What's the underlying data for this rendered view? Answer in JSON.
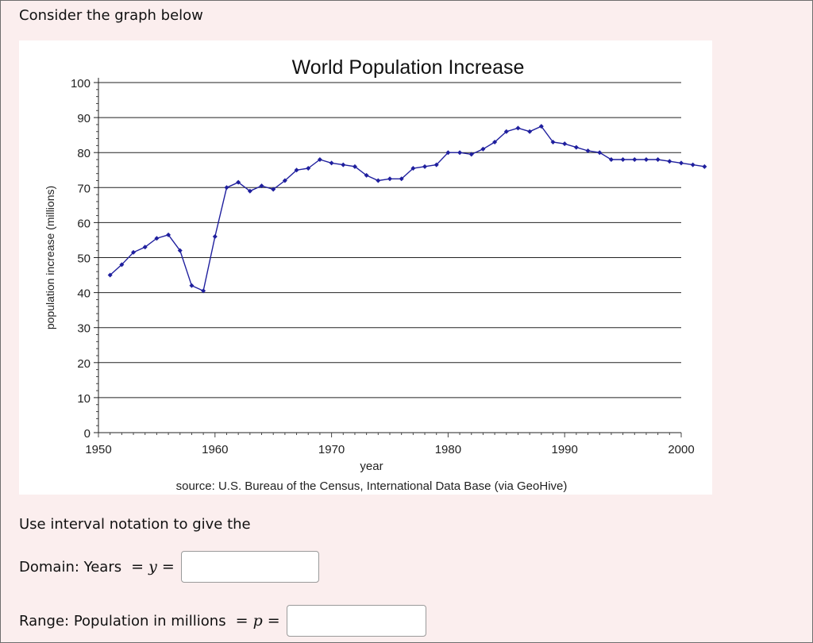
{
  "question": {
    "intro": "Consider the graph below",
    "instructions": "Use interval notation to give the",
    "domain": {
      "label": "Domain: Years",
      "symbol": "y",
      "value": "",
      "placeholder": ""
    },
    "range": {
      "label": "Range: Population in millions",
      "symbol": "p",
      "value": "",
      "placeholder": ""
    }
  },
  "chart_data": {
    "type": "line",
    "title": "World Population Increase",
    "xlabel": "year",
    "ylabel": "population increase (millions)",
    "source": "source: U.S. Bureau of the Census, International Data Base (via GeoHive)",
    "xlim": [
      1950,
      2000
    ],
    "ylim": [
      0,
      100
    ],
    "x_ticks": [
      "1950",
      "1960",
      "1970",
      "1980",
      "1990",
      "2000"
    ],
    "y_ticks": [
      "0",
      "10",
      "20",
      "30",
      "40",
      "50",
      "60",
      "70",
      "80",
      "90",
      "100"
    ],
    "grid": true,
    "series_color": "#1f1f9e",
    "series": [
      {
        "x": [
          1951,
          1952,
          1953,
          1954,
          1955,
          1956,
          1957,
          1958,
          1959,
          1960,
          1961,
          1962,
          1963,
          1964,
          1965,
          1966,
          1967,
          1968,
          1969,
          1970,
          1971,
          1972,
          1973,
          1974,
          1975,
          1976,
          1977,
          1978,
          1979,
          1980,
          1981,
          1982,
          1983,
          1984,
          1985,
          1986,
          1987,
          1988,
          1989,
          1990,
          1991,
          1992,
          1993,
          1994,
          1995,
          1996,
          1997,
          1998,
          1999,
          2000,
          2001,
          2002
        ],
        "y": [
          45,
          48,
          51.5,
          53,
          55.5,
          56.5,
          52,
          42,
          40.5,
          56,
          70,
          71.5,
          69,
          70.5,
          69.5,
          72,
          75,
          75.5,
          78,
          77,
          76.5,
          76,
          73.5,
          72,
          72.5,
          72.5,
          75.5,
          76,
          76.5,
          80,
          80,
          79.5,
          81,
          83,
          86,
          87,
          86,
          87.5,
          83,
          82.5,
          81.5,
          80.5,
          80,
          78,
          78,
          78,
          78,
          78,
          77.5,
          77,
          76.5,
          76
        ]
      }
    ]
  }
}
